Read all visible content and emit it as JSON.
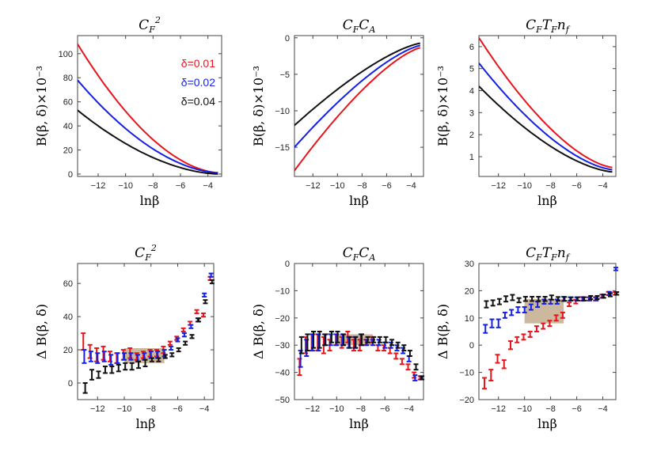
{
  "chart_data": [
    {
      "type": "line",
      "title_main": "C",
      "title_sub": "F",
      "title_rest": "",
      "title_sup": "2",
      "xlabel": "lnβ",
      "ylabel": "B(β, δ)×10⁻³",
      "xlim": [
        -13.5,
        -3
      ],
      "ylim": [
        -2,
        115
      ],
      "xticks": [
        -12,
        -10,
        -8,
        -6,
        -4
      ],
      "yticks": [
        0,
        20,
        40,
        60,
        80,
        100
      ],
      "legend": [
        "δ=0.01",
        "δ=0.02",
        "δ=0.04"
      ],
      "series": [
        {
          "name": "δ=0.01",
          "color": "#e8141c",
          "a": 108,
          "b": 1,
          "p": 1.8
        },
        {
          "name": "δ=0.02",
          "color": "#1420e6",
          "a": 78,
          "b": 1,
          "p": 1.8
        },
        {
          "name": "δ=0.04",
          "color": "#111111",
          "a": 53,
          "b": 0,
          "p": 1.8
        }
      ]
    },
    {
      "type": "line",
      "title_main": "C",
      "title_sub": "F",
      "title_rest": "C",
      "title_sub2": "A",
      "xlabel": "lnβ",
      "ylabel": "B(β, δ)×10⁻³",
      "xlim": [
        -13.5,
        -3
      ],
      "ylim": [
        -19,
        0.3
      ],
      "xticks": [
        -12,
        -10,
        -8,
        -6,
        -4
      ],
      "yticks": [
        0,
        -5,
        -10,
        -15
      ],
      "series": [
        {
          "name": "δ=0.01",
          "color": "#e8141c",
          "a": -18.2,
          "b": -1.3,
          "p": 1.4
        },
        {
          "name": "δ=0.02",
          "color": "#1420e6",
          "a": -15.0,
          "b": -1.0,
          "p": 1.4
        },
        {
          "name": "δ=0.04",
          "color": "#111111",
          "a": -12.0,
          "b": -0.7,
          "p": 1.4
        }
      ]
    },
    {
      "type": "line",
      "title_main": "C",
      "title_sub": "F",
      "title_rest": "T",
      "title_sub2": "F",
      "title_tail": "n",
      "title_sub3": "f",
      "xlabel": "lnβ",
      "ylabel": "B(β, δ)×10⁻³",
      "xlim": [
        -13.5,
        -3
      ],
      "ylim": [
        0.1,
        6.5
      ],
      "xticks": [
        -12,
        -10,
        -8,
        -6,
        -4
      ],
      "yticks": [
        1,
        2,
        3,
        4,
        5,
        6
      ],
      "series": [
        {
          "name": "δ=0.01",
          "color": "#e8141c",
          "a": 6.4,
          "b": 0.5,
          "p": 1.6
        },
        {
          "name": "δ=0.02",
          "color": "#1420e6",
          "a": 5.25,
          "b": 0.4,
          "p": 1.6
        },
        {
          "name": "δ=0.04",
          "color": "#111111",
          "a": 4.2,
          "b": 0.3,
          "p": 1.6
        }
      ]
    },
    {
      "type": "scatter",
      "title_main": "C",
      "title_sub": "F",
      "title_rest": "",
      "title_sup": "2",
      "xlabel": "lnβ",
      "ylabel": "Δ B(β, δ)",
      "xlim": [
        -13.5,
        -3.3
      ],
      "ylim": [
        -10,
        72
      ],
      "xticks": [
        -12,
        -10,
        -8,
        -6,
        -4
      ],
      "yticks": [
        0,
        20,
        40,
        60
      ],
      "band": {
        "x": [
          -10,
          -7
        ],
        "y": [
          12,
          21
        ]
      },
      "x": [
        -13,
        -12.5,
        -12,
        -11.5,
        -11,
        -10.5,
        -10,
        -9.5,
        -9,
        -8.5,
        -8,
        -7.5,
        -7,
        -6.5,
        -6,
        -5.5,
        -5,
        -4.5,
        -4,
        -3.5
      ],
      "series": [
        {
          "name": "δ=0.01",
          "color": "#e8141c",
          "y": [
            25,
            19,
            17,
            18,
            16,
            15,
            17,
            18,
            16,
            17,
            18,
            18,
            20,
            24,
            27,
            32,
            36,
            43,
            41,
            63
          ],
          "err": [
            5,
            4,
            4,
            4,
            3,
            3,
            3,
            3,
            2,
            2,
            2,
            2,
            2,
            1,
            1,
            1,
            1,
            1,
            1,
            1
          ]
        },
        {
          "name": "δ=0.02",
          "color": "#1420e6",
          "y": [
            16,
            16,
            15,
            16,
            14,
            15,
            16,
            16,
            15,
            16,
            17,
            17,
            18,
            21,
            26,
            29,
            34,
            38,
            53,
            65
          ],
          "err": [
            4,
            3,
            3,
            3,
            3,
            3,
            2,
            2,
            2,
            2,
            2,
            2,
            2,
            1,
            1,
            1,
            1,
            1,
            1,
            1
          ]
        },
        {
          "name": "δ=0.04",
          "color": "#111111",
          "y": [
            -3,
            5,
            5,
            8,
            8,
            9,
            10,
            10,
            11,
            12,
            14,
            14,
            16,
            17,
            20,
            24,
            28,
            38,
            49,
            61
          ],
          "err": [
            3,
            3,
            2,
            2,
            2,
            2,
            2,
            2,
            2,
            2,
            1,
            1,
            1,
            1,
            1,
            1,
            1,
            1,
            1,
            1
          ]
        }
      ]
    },
    {
      "type": "scatter",
      "title_main": "C",
      "title_sub": "F",
      "title_rest": "C",
      "title_sub2": "A",
      "xlabel": "lnβ",
      "ylabel": "Δ B(β, δ)",
      "xlim": [
        -13.5,
        -2.8
      ],
      "ylim": [
        -50,
        0
      ],
      "xticks": [
        -12,
        -10,
        -8,
        -6,
        -4
      ],
      "yticks": [
        0,
        -10,
        -20,
        -30,
        -40,
        -50
      ],
      "band": {
        "x": [
          -10,
          -7
        ],
        "y": [
          -30,
          -26
        ]
      },
      "x": [
        -13,
        -12.5,
        -12,
        -11.5,
        -11,
        -10.5,
        -10,
        -9.5,
        -9,
        -8.5,
        -8,
        -7.5,
        -7,
        -6.5,
        -6,
        -5.5,
        -5,
        -4.5,
        -4,
        -3.5,
        -3
      ],
      "series": [
        {
          "name": "δ=0.01",
          "color": "#e8141c",
          "y": [
            -38,
            -30,
            -29,
            -29,
            -30,
            -30,
            -28,
            -29,
            -27,
            -30,
            -30,
            -29,
            -28,
            -31,
            -31,
            -32,
            -34,
            -36,
            -38,
            -41,
            -42
          ],
          "err": [
            3,
            3,
            3,
            3,
            3,
            2,
            2,
            2,
            2,
            2,
            2,
            1,
            1,
            1,
            1,
            1,
            1,
            1,
            1,
            1,
            0.6
          ]
        },
        {
          "name": "δ=0.02",
          "color": "#1420e6",
          "y": [
            -35,
            -31,
            -29,
            -29,
            -28,
            -28,
            -28,
            -28,
            -29,
            -29,
            -28,
            -29,
            -29,
            -29,
            -30,
            -30,
            -31,
            -32,
            -35,
            -42,
            -42
          ],
          "err": [
            3,
            3,
            3,
            3,
            2,
            2,
            2,
            2,
            2,
            2,
            2,
            1,
            1,
            1,
            1,
            1,
            1,
            1,
            1,
            1,
            0.6
          ]
        },
        {
          "name": "δ=0.04",
          "color": "#111111",
          "y": [
            -30,
            -29,
            -28,
            -28,
            -28,
            -27,
            -27,
            -28,
            -29,
            -29,
            -28,
            -28,
            -28,
            -28,
            -28,
            -29,
            -30,
            -31,
            -33,
            -38,
            -42
          ],
          "err": [
            3,
            3,
            3,
            3,
            2,
            2,
            2,
            2,
            2,
            2,
            2,
            1,
            1,
            1,
            1,
            1,
            1,
            1,
            1,
            1,
            0.6
          ]
        }
      ]
    },
    {
      "type": "scatter",
      "title_main": "C",
      "title_sub": "F",
      "title_rest": "T",
      "title_sub2": "F",
      "title_tail": "n",
      "title_sub3": "f",
      "xlabel": "lnβ",
      "ylabel": "Δ B(β, δ)",
      "xlim": [
        -13.5,
        -3
      ],
      "ylim": [
        -20,
        30
      ],
      "xticks": [
        -12,
        -10,
        -8,
        -6,
        -4
      ],
      "yticks": [
        30,
        20,
        10,
        0,
        -10,
        -20
      ],
      "band": {
        "x": [
          -10,
          -7
        ],
        "y": [
          8,
          17
        ]
      },
      "x": [
        -13,
        -12.5,
        -12,
        -11.5,
        -11,
        -10.5,
        -10,
        -9.5,
        -9,
        -8.5,
        -8,
        -7.5,
        -7,
        -6.5,
        -6,
        -5.5,
        -5,
        -4.5,
        -4,
        -3.5,
        -3
      ],
      "series": [
        {
          "name": "δ=0.01",
          "color": "#e8141c",
          "y": [
            -14,
            -11,
            -5,
            -7,
            0,
            2,
            3,
            4,
            6,
            7,
            8,
            10,
            11,
            15,
            16,
            17,
            17,
            17,
            18,
            19,
            19
          ],
          "err": [
            2,
            2,
            1.5,
            1.5,
            1.5,
            1,
            1,
            1,
            1,
            1,
            1,
            1,
            1,
            0.7,
            0.7,
            0.7,
            0.6,
            0.6,
            0.6,
            0.6,
            0.5
          ]
        },
        {
          "name": "δ=0.02",
          "color": "#1420e6",
          "y": [
            6,
            8,
            8,
            11,
            12,
            13,
            13,
            14,
            15,
            16,
            16,
            16,
            17,
            17,
            17,
            17,
            17,
            17,
            18,
            19,
            28
          ],
          "err": [
            1.5,
            1.5,
            1.5,
            1,
            1,
            1,
            1,
            1,
            1,
            0.8,
            0.8,
            0.8,
            0.8,
            0.6,
            0.6,
            0.6,
            0.6,
            0.6,
            0.6,
            0.6,
            0.5
          ]
        },
        {
          "name": "δ=0.04",
          "color": "#111111",
          "y": [
            15,
            15.5,
            16,
            17,
            17.5,
            16.5,
            17,
            17,
            17,
            17,
            17.5,
            17,
            17,
            17,
            17,
            17,
            17.5,
            17.5,
            18,
            18.5,
            19
          ],
          "err": [
            1.2,
            1,
            1,
            1,
            1,
            0.8,
            0.8,
            0.8,
            0.8,
            0.8,
            0.8,
            0.7,
            0.7,
            0.6,
            0.6,
            0.6,
            0.6,
            0.6,
            0.6,
            0.6,
            0.5
          ]
        }
      ]
    }
  ]
}
